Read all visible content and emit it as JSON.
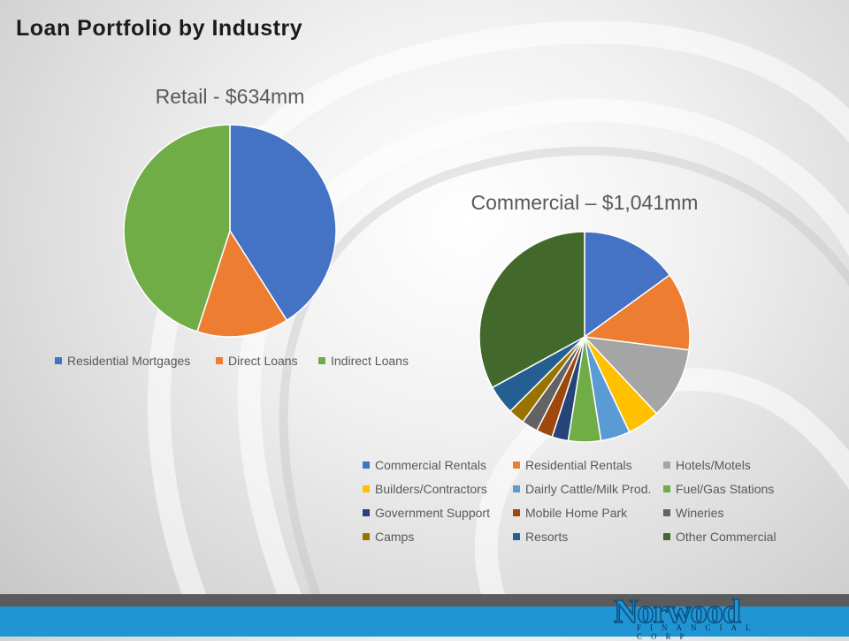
{
  "page": {
    "title": "Loan Portfolio by Industry"
  },
  "footer": {
    "logo_name": "Norwood",
    "logo_sub": "FINANCIAL CORP",
    "colors": {
      "dark_bar": "#5b5b5b",
      "blue_bar": "#1f95d3"
    }
  },
  "chart_data": [
    {
      "type": "pie",
      "title": "Retail - $634mm",
      "legend_position": "bottom",
      "categories": [
        "Residential Mortgages",
        "Direct Loans",
        "Indirect Loans"
      ],
      "values": [
        41,
        14,
        45
      ],
      "colors": [
        "#4472c4",
        "#ed7d31",
        "#70ad47"
      ]
    },
    {
      "type": "pie",
      "title": "Commercial –    $1,041mm",
      "legend_position": "bottom",
      "categories": [
        "Commercial Rentals",
        "Residential Rentals",
        "Hotels/Motels",
        "Builders/Contractors",
        "Dairly Cattle/Milk Prod.",
        "Fuel/Gas Stations",
        "Government Support",
        "Mobile Home Park",
        "Wineries",
        "Camps",
        "Resorts",
        "Other Commercial"
      ],
      "values": [
        15,
        12,
        11,
        5,
        4.5,
        5,
        2.5,
        2.5,
        2.5,
        2.5,
        4.5,
        33
      ],
      "colors": [
        "#4472c4",
        "#ed7d31",
        "#a5a5a5",
        "#ffc000",
        "#5b9bd5",
        "#70ad47",
        "#264478",
        "#9e480e",
        "#636363",
        "#997300",
        "#255e91",
        "#43682b"
      ]
    }
  ]
}
